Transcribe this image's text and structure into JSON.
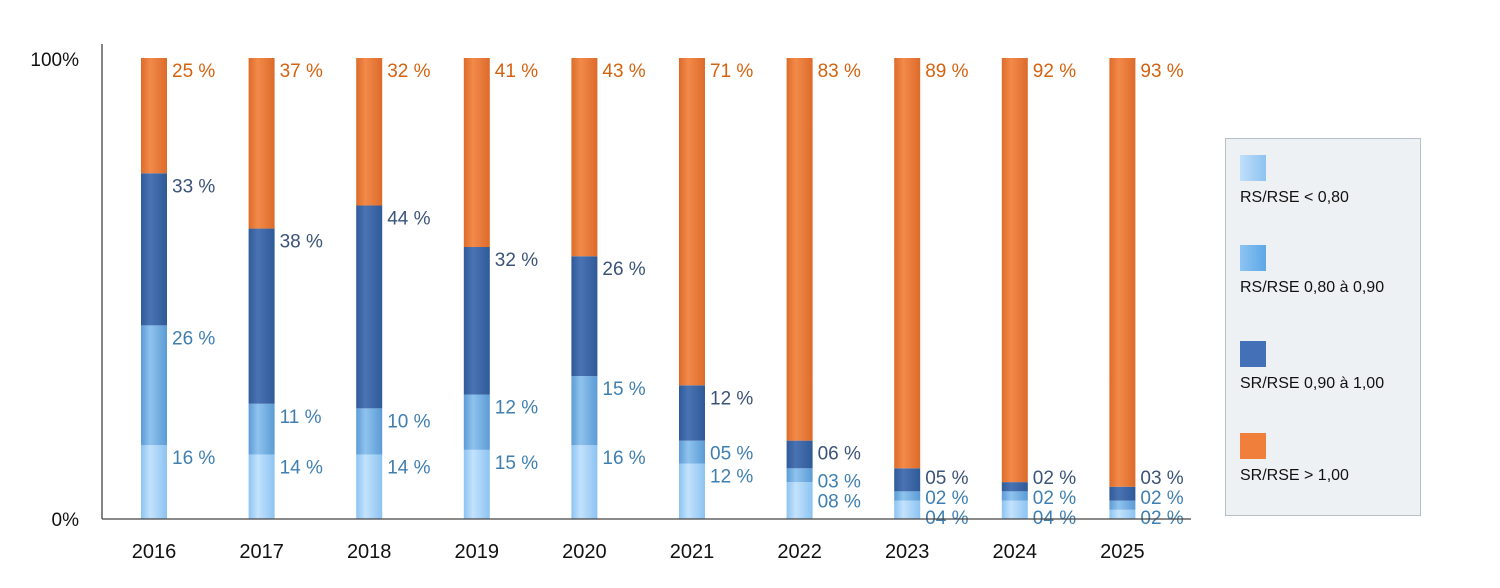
{
  "chart_data": {
    "type": "bar",
    "stacked": true,
    "normalized": true,
    "categories": [
      "2016",
      "2017",
      "2018",
      "2019",
      "2020",
      "2021",
      "2022",
      "2023",
      "2024",
      "2025"
    ],
    "series": [
      {
        "name": "RS/RSE < 0,80",
        "color": "#9fcdf5",
        "values": [
          16,
          14,
          14,
          15,
          16,
          12,
          8,
          4,
          4,
          2
        ],
        "labels": [
          "16 %",
          "14 %",
          "14 %",
          "15 %",
          "16 %",
          "12 %",
          "08 %",
          "04 %",
          "04 %",
          "02 %"
        ]
      },
      {
        "name": "RS/RSE 0,80 à 0,90",
        "color": "#6ea8dc",
        "values": [
          26,
          11,
          10,
          12,
          15,
          5,
          3,
          2,
          2,
          2
        ],
        "labels": [
          "26 %",
          "11 %",
          "10 %",
          "12 %",
          "15 %",
          "05 %",
          "03 %",
          "02 %",
          "02 %",
          "02 %"
        ]
      },
      {
        "name": "SR/RSE 0,90 à 1,00",
        "color": "#3a5f9b",
        "values": [
          33,
          38,
          44,
          32,
          26,
          12,
          6,
          5,
          2,
          3
        ],
        "labels": [
          "33 %",
          "38 %",
          "44 %",
          "32 %",
          "26 %",
          "12 %",
          "06 %",
          "05 %",
          "02 %",
          "03 %"
        ]
      },
      {
        "name": "SR/RSE > 1,00",
        "color": "#e87d3e",
        "values": [
          25,
          37,
          32,
          41,
          43,
          71,
          83,
          89,
          92,
          93
        ],
        "labels": [
          "25 %",
          "37 %",
          "32 %",
          "41 %",
          "43 %",
          "71 %",
          "83 %",
          "89 %",
          "92 %",
          "93 %"
        ]
      }
    ],
    "y_ticks": [
      "100%",
      "0%"
    ],
    "ylim": [
      0,
      100
    ],
    "label_colors": {
      "light": "#3f7fb0",
      "dark": "#3b5378",
      "orange": "#d4620f"
    },
    "legend_position": "right",
    "grid": false
  }
}
